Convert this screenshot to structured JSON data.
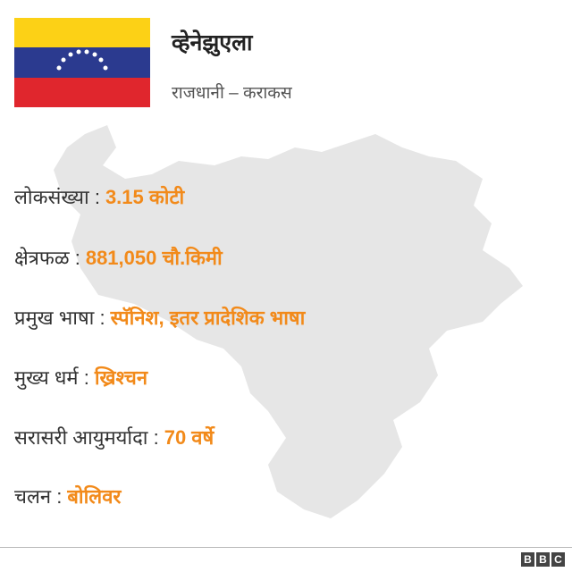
{
  "header": {
    "title": "व्हेनेझुएला",
    "subtitle": "राजधानी – कराकस"
  },
  "facts": [
    {
      "label": "लोकसंख्या :",
      "value": "3.15 कोटी"
    },
    {
      "label": "क्षेत्रफळ :",
      "value": "881,050 चौ.किमी"
    },
    {
      "label": "प्रमुख भाषा :",
      "value": "स्पॅनिश, इतर प्रादेशिक भाषा"
    },
    {
      "label": "मुख्य धर्म :",
      "value": "ख्रिश्चन"
    },
    {
      "label": "सरासरी आयुमर्यादा :",
      "value": "70 वर्षे"
    },
    {
      "label": "चलन :",
      "value": "बोलिवर"
    }
  ],
  "footer": {
    "logo": [
      "B",
      "B",
      "C"
    ]
  }
}
